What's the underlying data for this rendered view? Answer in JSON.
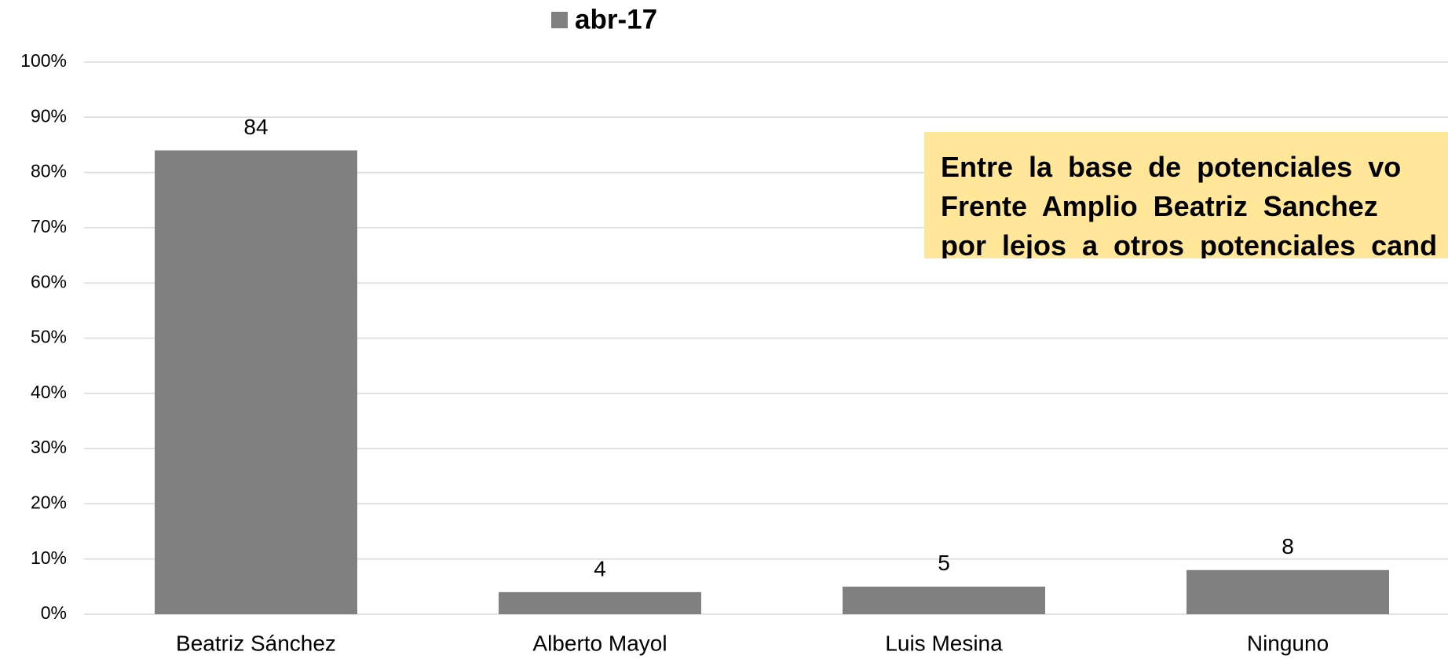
{
  "chart_data": {
    "type": "bar",
    "legend": "abr-17",
    "categories": [
      "Beatriz Sánchez",
      "Alberto Mayol",
      "Luis Mesina",
      "Ninguno"
    ],
    "values": [
      84,
      4,
      5,
      8
    ],
    "color": "#808080",
    "ylim": [
      0,
      100
    ],
    "yticks": [
      {
        "value": 0,
        "label": "0%"
      },
      {
        "value": 10,
        "label": "10%"
      },
      {
        "value": 20,
        "label": "20%"
      },
      {
        "value": 30,
        "label": "30%"
      },
      {
        "value": 40,
        "label": "40%"
      },
      {
        "value": 50,
        "label": "50%"
      },
      {
        "value": 60,
        "label": "60%"
      },
      {
        "value": 70,
        "label": "70%"
      },
      {
        "value": 80,
        "label": "80%"
      },
      {
        "value": 90,
        "label": "90%"
      },
      {
        "value": 100,
        "label": "100%"
      }
    ],
    "grid": true,
    "annotation": [
      "Entre la base de potenciales vo",
      "Frente Amplio Beatriz Sanchez",
      "por lejos a otros potenciales cand"
    ]
  }
}
